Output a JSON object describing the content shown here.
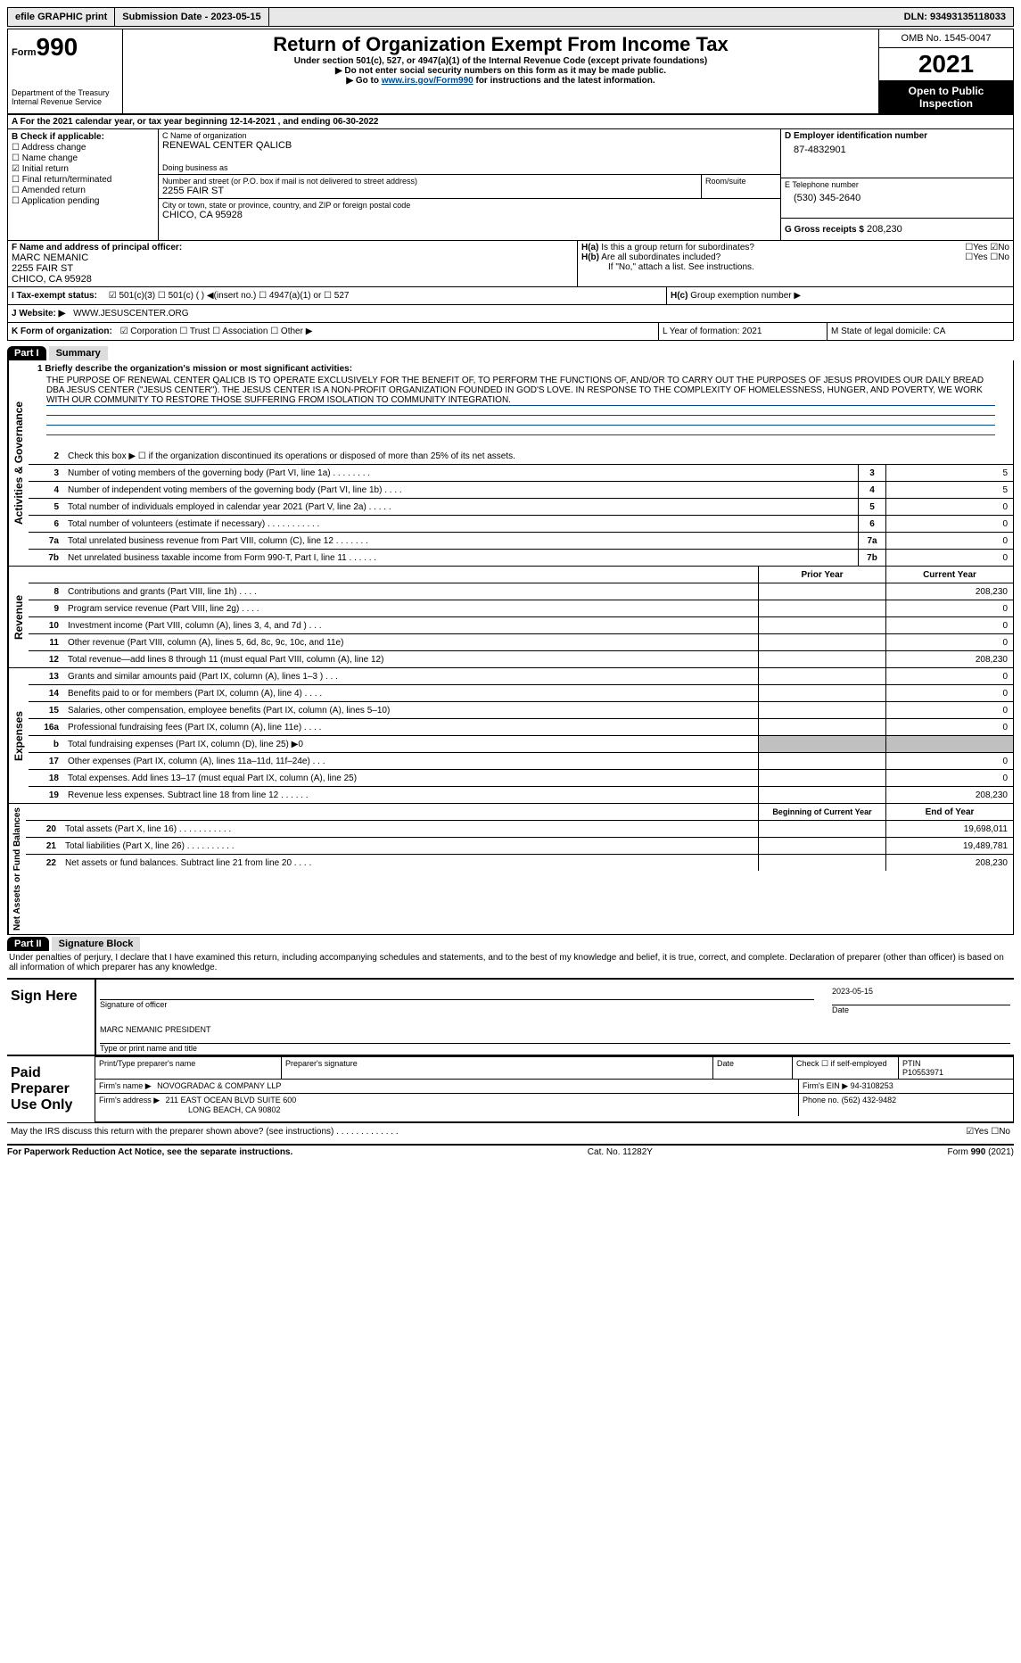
{
  "topbar": {
    "efile": "efile GRAPHIC print",
    "submission": "Submission Date - 2023-05-15",
    "dln": "DLN: 93493135118033"
  },
  "header": {
    "form_label": "Form",
    "form_num": "990",
    "dept": "Department of the Treasury Internal Revenue Service",
    "title": "Return of Organization Exempt From Income Tax",
    "sub1": "Under section 501(c), 527, or 4947(a)(1) of the Internal Revenue Code (except private foundations)",
    "sub2": "▶ Do not enter social security numbers on this form as it may be made public.",
    "sub3_pre": "▶ Go to ",
    "sub3_link": "www.irs.gov/Form990",
    "sub3_post": " for instructions and the latest information.",
    "omb": "OMB No. 1545-0047",
    "year": "2021",
    "open": "Open to Public Inspection"
  },
  "sectionA": {
    "a_text": "A For the 2021 calendar year, or tax year beginning 12-14-2021   , and ending 06-30-2022",
    "b_label": "B Check if applicable:",
    "b_opts": [
      "☐ Address change",
      "☐ Name change",
      "☑ Initial return",
      "☐ Final return/terminated",
      "☐ Amended return",
      "☐ Application pending"
    ],
    "c_label": "C Name of organization",
    "c_name": "RENEWAL CENTER QALICB",
    "dba_label": "Doing business as",
    "addr_label": "Number and street (or P.O. box if mail is not delivered to street address)",
    "addr": "2255 FAIR ST",
    "room_label": "Room/suite",
    "city_label": "City or town, state or province, country, and ZIP or foreign postal code",
    "city": "CHICO, CA  95928",
    "d_label": "D Employer identification number",
    "d_val": "87-4832901",
    "e_label": "E Telephone number",
    "e_val": "(530) 345-2640",
    "g_label": "G Gross receipts $",
    "g_val": "208,230",
    "f_label": "F  Name and address of principal officer:",
    "f_name": "MARC NEMANIC",
    "f_addr1": "2255 FAIR ST",
    "f_addr2": "CHICO, CA  95928",
    "ha_label": "H(a)  Is this a group return for subordinates?",
    "ha_yes": "☐Yes ☑No",
    "hb_label": "H(b)  Are all subordinates included?",
    "hb_yes": "☐Yes ☐No",
    "hb_note": "If \"No,\" attach a list. See instructions.",
    "hc_label": "H(c)  Group exemption number ▶",
    "i_label": "I  Tax-exempt status:",
    "i_opts": "☑ 501(c)(3)   ☐ 501(c) (  ) ◀(insert no.)    ☐ 4947(a)(1) or   ☐ 527",
    "j_label": "J  Website: ▶",
    "j_val": "WWW.JESUSCENTER.ORG",
    "k_label": "K Form of organization:",
    "k_opts": "☑ Corporation  ☐ Trust  ☐ Association  ☐ Other ▶",
    "l_label": "L Year of formation: 2021",
    "m_label": "M State of legal domicile: CA"
  },
  "parts": {
    "p1": "Part I",
    "p1_title": "Summary",
    "p2": "Part II",
    "p2_title": "Signature Block"
  },
  "summary": {
    "line1_label": "1  Briefly describe the organization's mission or most significant activities:",
    "mission": "THE PURPOSE OF RENEWAL CENTER QALICB IS TO OPERATE EXCLUSIVELY FOR THE BENEFIT OF, TO PERFORM THE FUNCTIONS OF, AND/OR TO CARRY OUT THE PURPOSES OF JESUS PROVIDES OUR DAILY BREAD DBA JESUS CENTER (\"JESUS CENTER\"). THE JESUS CENTER IS A NON-PROFIT ORGANIZATION FOUNDED IN GOD'S LOVE. IN RESPONSE TO THE COMPLEXITY OF HOMELESSNESS, HUNGER, AND POVERTY, WE WORK WITH OUR COMMUNITY TO RESTORE THOSE SUFFERING FROM ISOLATION TO COMMUNITY INTEGRATION.",
    "line2": "Check this box ▶ ☐  if the organization discontinued its operations or disposed of more than 25% of its net assets.",
    "sections": {
      "governance": {
        "label": "Activities & Governance",
        "lines": [
          {
            "n": "3",
            "d": "Number of voting members of the governing body (Part VI, line 1a)  .   .   .   .   .   .   .   .",
            "box": "3",
            "v": "5"
          },
          {
            "n": "4",
            "d": "Number of independent voting members of the governing body (Part VI, line 1b)   .   .   .   .",
            "box": "4",
            "v": "5"
          },
          {
            "n": "5",
            "d": "Total number of individuals employed in calendar year 2021 (Part V, line 2a)  .   .   .   .   .",
            "box": "5",
            "v": "0"
          },
          {
            "n": "6",
            "d": "Total number of volunteers (estimate if necessary)   .   .   .   .   .   .   .   .   .   .   .",
            "box": "6",
            "v": "0"
          },
          {
            "n": "7a",
            "d": "Total unrelated business revenue from Part VIII, column (C), line 12   .   .   .   .   .   .   .",
            "box": "7a",
            "v": "0"
          },
          {
            "n": "7b",
            "d": "Net unrelated business taxable income from Form 990-T, Part I, line 11   .   .   .   .   .   .",
            "box": "7b",
            "v": "0"
          }
        ]
      },
      "revenue": {
        "label": "Revenue",
        "header": {
          "prior": "Prior Year",
          "current": "Current Year"
        },
        "lines": [
          {
            "n": "8",
            "d": "Contributions and grants (Part VIII, line 1h)   .   .   .   .",
            "p": "",
            "c": "208,230"
          },
          {
            "n": "9",
            "d": "Program service revenue (Part VIII, line 2g)   .   .   .   .",
            "p": "",
            "c": "0"
          },
          {
            "n": "10",
            "d": "Investment income (Part VIII, column (A), lines 3, 4, and 7d )   .   .   .",
            "p": "",
            "c": "0"
          },
          {
            "n": "11",
            "d": "Other revenue (Part VIII, column (A), lines 5, 6d, 8c, 9c, 10c, and 11e)",
            "p": "",
            "c": "0"
          },
          {
            "n": "12",
            "d": "Total revenue—add lines 8 through 11 (must equal Part VIII, column (A), line 12)",
            "p": "",
            "c": "208,230"
          }
        ]
      },
      "expenses": {
        "label": "Expenses",
        "lines": [
          {
            "n": "13",
            "d": "Grants and similar amounts paid (Part IX, column (A), lines 1–3 )  .   .   .",
            "p": "",
            "c": "0"
          },
          {
            "n": "14",
            "d": "Benefits paid to or for members (Part IX, column (A), line 4)   .   .   .   .",
            "p": "",
            "c": "0"
          },
          {
            "n": "15",
            "d": "Salaries, other compensation, employee benefits (Part IX, column (A), lines 5–10)",
            "p": "",
            "c": "0"
          },
          {
            "n": "16a",
            "d": "Professional fundraising fees (Part IX, column (A), line 11e)   .   .   .   .",
            "p": "",
            "c": "0"
          },
          {
            "n": "b",
            "d": "Total fundraising expenses (Part IX, column (D), line 25) ▶0",
            "p": "shade",
            "c": "shade"
          },
          {
            "n": "17",
            "d": "Other expenses (Part IX, column (A), lines 11a–11d, 11f–24e)   .   .   .",
            "p": "",
            "c": "0"
          },
          {
            "n": "18",
            "d": "Total expenses. Add lines 13–17 (must equal Part IX, column (A), line 25)",
            "p": "",
            "c": "0"
          },
          {
            "n": "19",
            "d": "Revenue less expenses. Subtract line 18 from line 12   .   .   .   .   .   .",
            "p": "",
            "c": "208,230"
          }
        ]
      },
      "net": {
        "label": "Net Assets or Fund Balances",
        "header": {
          "prior": "Beginning of Current Year",
          "current": "End of Year"
        },
        "lines": [
          {
            "n": "20",
            "d": "Total assets (Part X, line 16)   .   .   .   .   .   .   .   .   .   .   .",
            "p": "",
            "c": "19,698,011"
          },
          {
            "n": "21",
            "d": "Total liabilities (Part X, line 26)   .   .   .   .   .   .   .   .   .   .",
            "p": "",
            "c": "19,489,781"
          },
          {
            "n": "22",
            "d": "Net assets or fund balances. Subtract line 21 from line 20   .   .   .   .",
            "p": "",
            "c": "208,230"
          }
        ]
      }
    }
  },
  "signature": {
    "declaration": "Under penalties of perjury, I declare that I have examined this return, including accompanying schedules and statements, and to the best of my knowledge and belief, it is true, correct, and complete. Declaration of preparer (other than officer) is based on all information of which preparer has any knowledge.",
    "sign_here": "Sign Here",
    "sig_officer": "Signature of officer",
    "date": "Date",
    "date_val": "2023-05-15",
    "officer_name": "MARC NEMANIC  PRESIDENT",
    "type_name": "Type or print name and title",
    "paid_prep": "Paid Preparer Use Only",
    "prep_name_label": "Print/Type preparer's name",
    "prep_sig_label": "Preparer's signature",
    "prep_date_label": "Date",
    "check_self": "Check ☐ if self-employed",
    "ptin_label": "PTIN",
    "ptin": "P10553971",
    "firm_name_label": "Firm's name    ▶",
    "firm_name": "NOVOGRADAC & COMPANY LLP",
    "firm_ein_label": "Firm's EIN ▶",
    "firm_ein": "94-3108253",
    "firm_addr_label": "Firm's address ▶",
    "firm_addr1": "211 EAST OCEAN BLVD SUITE 600",
    "firm_addr2": "LONG BEACH, CA  90802",
    "phone_label": "Phone no.",
    "phone": "(562) 432-9482",
    "discuss": "May the IRS discuss this return with the preparer shown above? (see instructions)   .   .   .   .   .   .   .   .   .   .   .   .   .",
    "discuss_yn": "☑Yes  ☐No"
  },
  "footer": {
    "left": "For Paperwork Reduction Act Notice, see the separate instructions.",
    "mid": "Cat. No. 11282Y",
    "right": "Form 990 (2021)"
  }
}
